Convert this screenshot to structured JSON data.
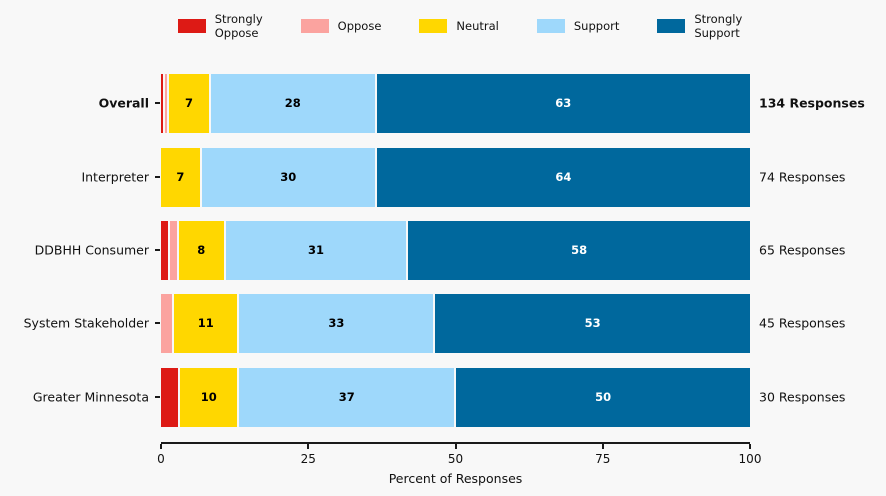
{
  "figure": {
    "background": "#f8f8f8"
  },
  "legend": {
    "items": [
      {
        "name": "strongly-oppose",
        "label": "Strongly\nOppose",
        "color": "#dd1a15"
      },
      {
        "name": "oppose",
        "label": "Oppose",
        "color": "#fba39f"
      },
      {
        "name": "neutral",
        "label": "Neutral",
        "color": "#ffd700"
      },
      {
        "name": "support",
        "label": "Support",
        "color": "#9ed8fb"
      },
      {
        "name": "strongly-support",
        "label": "Strongly\nSupport",
        "color": "#00689d"
      }
    ]
  },
  "chart_data": {
    "type": "bar",
    "orientation": "horizontal",
    "stacked": true,
    "unit": "percent",
    "title": "",
    "xlabel": "Percent of Responses",
    "xlim": [
      0,
      100
    ],
    "xticks": [
      0,
      25,
      50,
      75,
      100
    ],
    "legend_position": "top",
    "categories": [
      "Overall",
      "Interpreter",
      "DDBHH Consumer",
      "System Stakeholder",
      "Greater Minnesota"
    ],
    "category_bold": [
      true,
      false,
      false,
      false,
      false
    ],
    "row_annotations": [
      "134 Responses",
      "74 Responses",
      "65 Responses",
      "45 Responses",
      "30 Responses"
    ],
    "annotation_bold": [
      true,
      false,
      false,
      false,
      false
    ],
    "series": [
      {
        "name": "Strongly Oppose",
        "color": "#dd1a15",
        "values": [
          0.7,
          0,
          1.5,
          0,
          3.3
        ],
        "value_labels": [
          "",
          "",
          "",
          "",
          ""
        ],
        "label_color": "#000000"
      },
      {
        "name": "Oppose",
        "color": "#fba39f",
        "values": [
          0.7,
          0,
          1.5,
          2.2,
          0
        ],
        "value_labels": [
          "",
          "",
          "",
          "",
          ""
        ],
        "label_color": "#000000"
      },
      {
        "name": "Neutral",
        "color": "#ffd700",
        "values": [
          7,
          7,
          8,
          11,
          10
        ],
        "value_labels": [
          "7",
          "7",
          "8",
          "11",
          "10"
        ],
        "label_color": "#000000"
      },
      {
        "name": "Support",
        "color": "#9ed8fb",
        "values": [
          28,
          30,
          31,
          33,
          37
        ],
        "value_labels": [
          "28",
          "30",
          "31",
          "33",
          "37"
        ],
        "label_color": "#000000"
      },
      {
        "name": "Strongly Support",
        "color": "#00689d",
        "values": [
          63,
          64,
          58,
          53,
          50
        ],
        "value_labels": [
          "63",
          "64",
          "58",
          "53",
          "50"
        ],
        "label_color": "#ffffff"
      }
    ]
  }
}
